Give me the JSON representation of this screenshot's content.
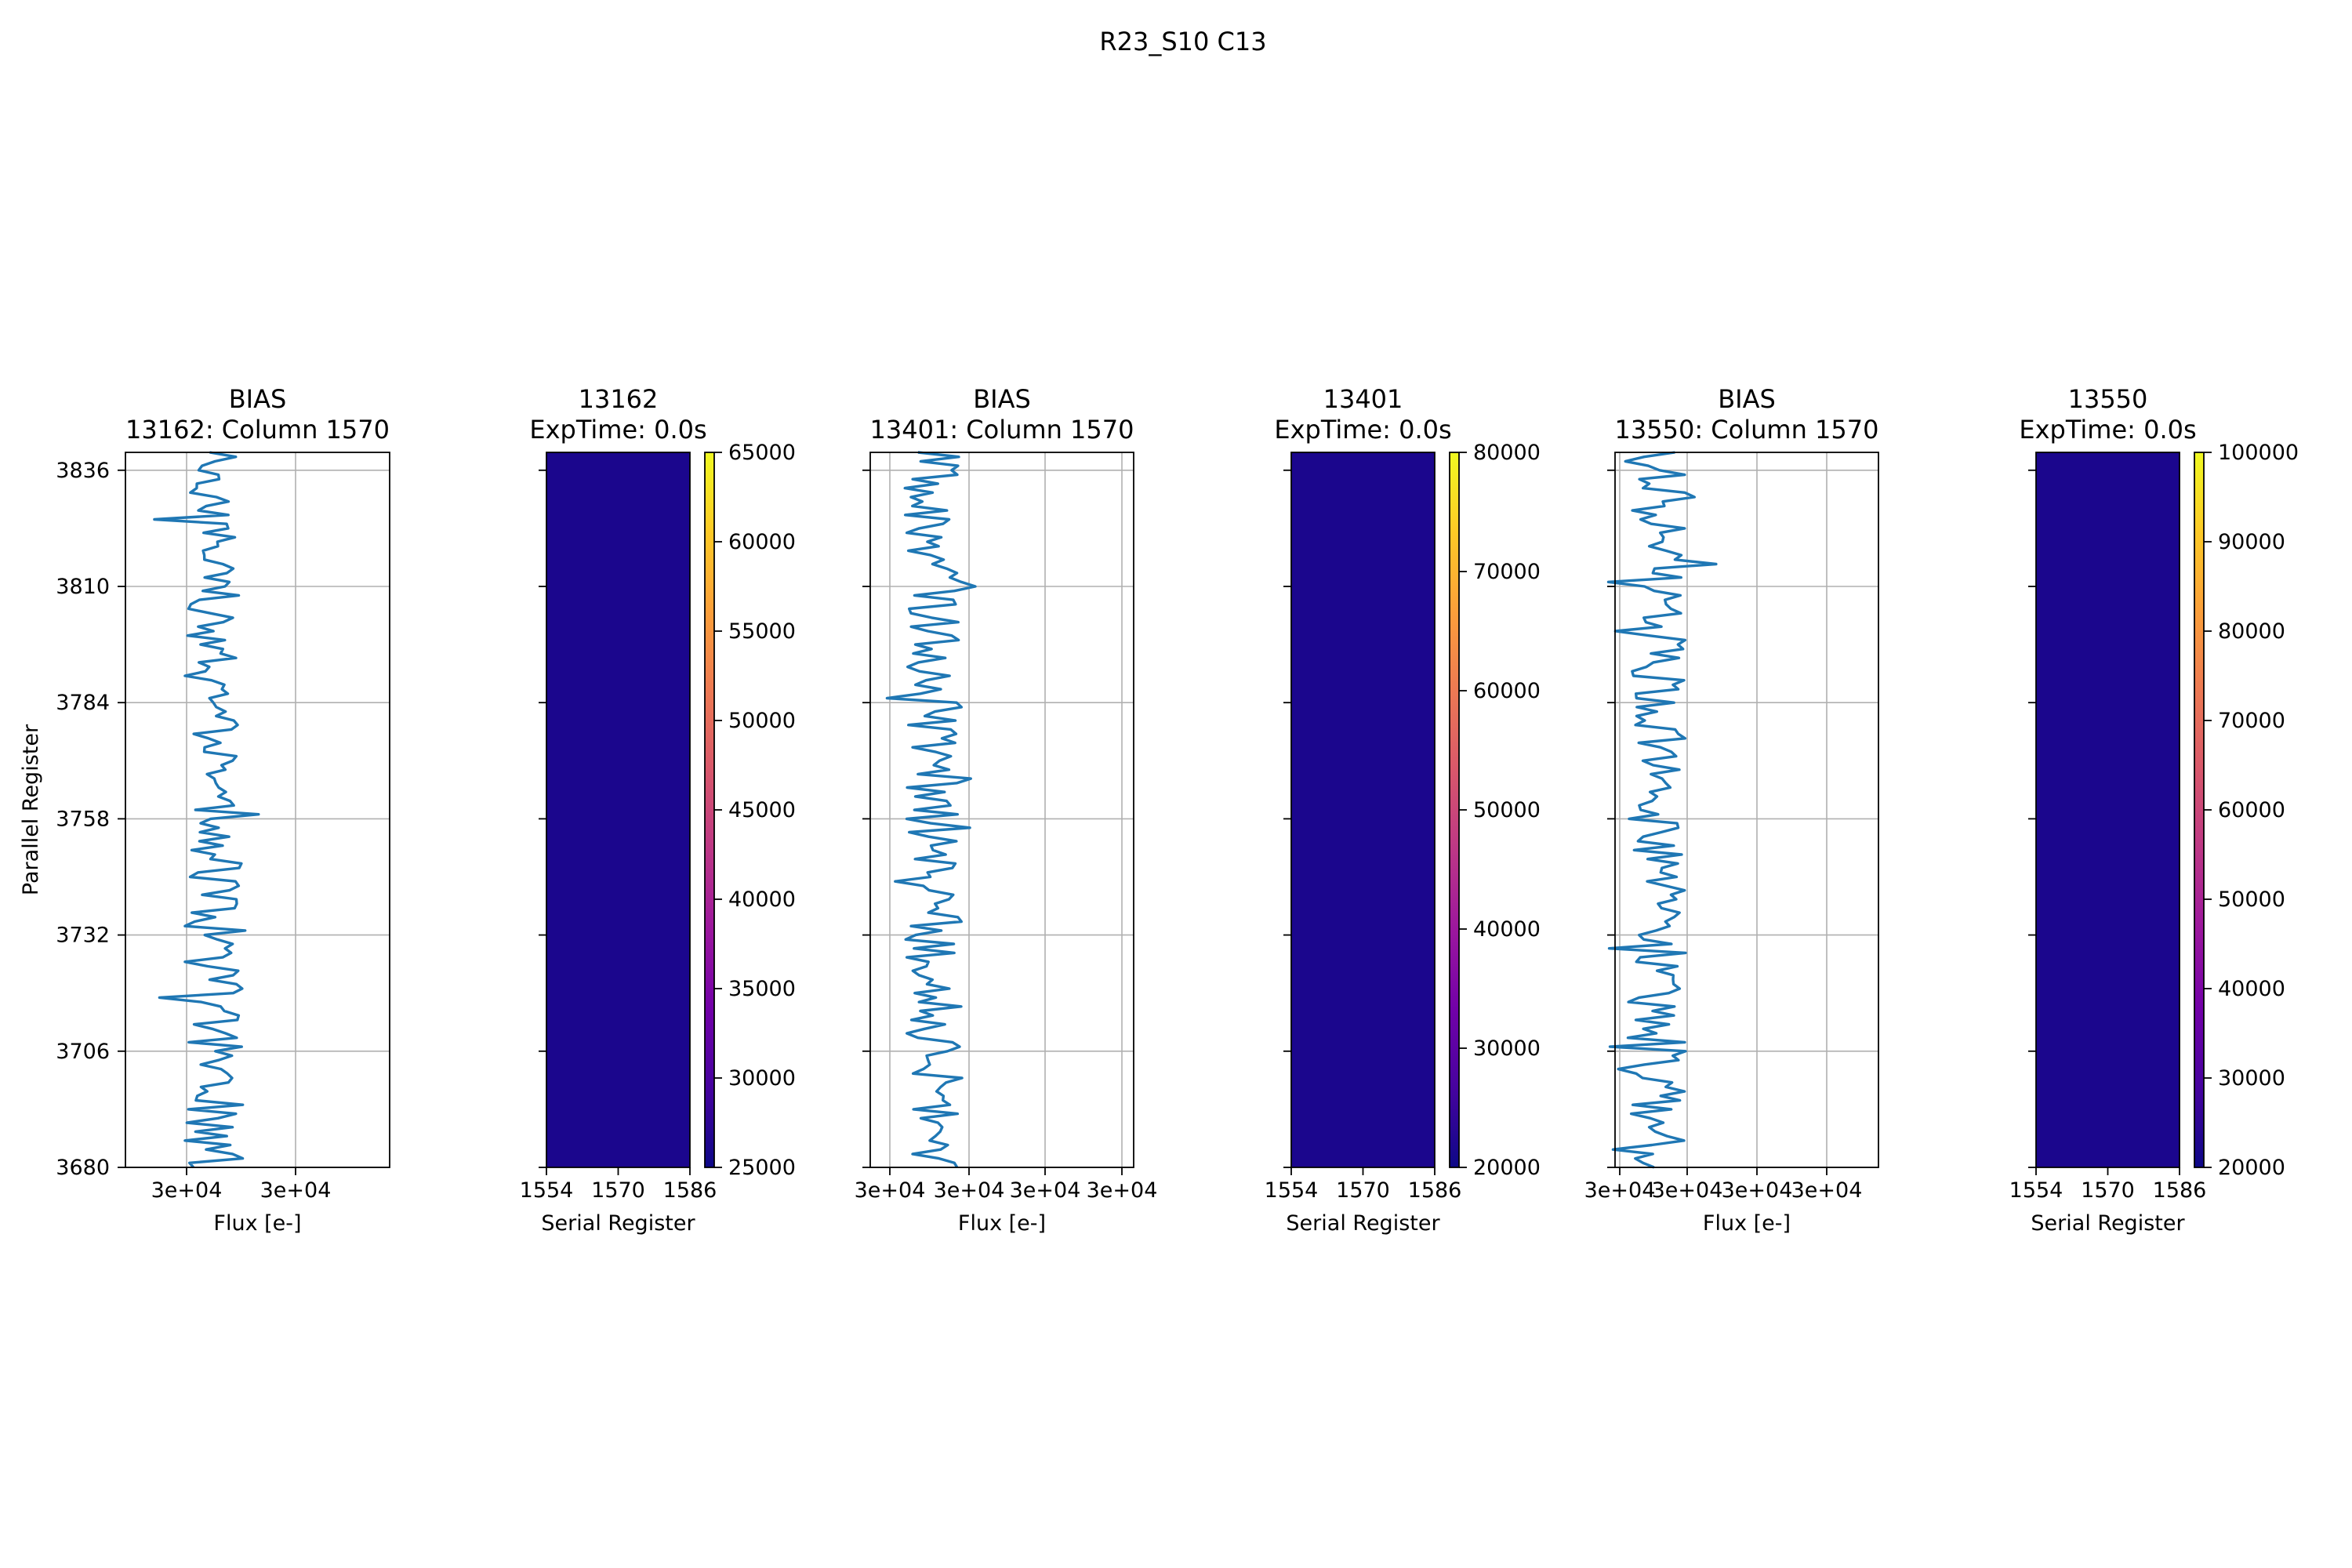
{
  "figure": {
    "suptitle": "R23_S10 C13"
  },
  "colors": {
    "line": "#1f77b4",
    "grid": "#b0b0b0",
    "image_fill": "#1b068d",
    "colormap": [
      "#0d0887",
      "#46039f",
      "#7201a8",
      "#9c179e",
      "#bd3786",
      "#d8576b",
      "#ed7953",
      "#fb9f3a",
      "#fdca26",
      "#f0f921"
    ]
  },
  "chart_data": [
    {
      "type": "line",
      "title_line1": "BIAS",
      "title_line2": "13162: Column 1570",
      "xlabel": "Flux [e-]",
      "ylabel": "Parallel Register",
      "xticks": [
        "3e+04",
        "3e+04"
      ],
      "yticks": [
        3680,
        3706,
        3732,
        3758,
        3784,
        3810,
        3836
      ],
      "ylim": [
        3680,
        3840
      ],
      "grid": true,
      "seed": 13162,
      "y": [
        3680,
        3840
      ]
    },
    {
      "type": "heatmap",
      "title_line1": "13162",
      "title_line2": "ExpTime: 0.0s",
      "xlabel": "Serial Register",
      "xticks": [
        1554,
        1570,
        1586
      ],
      "xlim": [
        1554,
        1586
      ],
      "ylim": [
        3680,
        3840
      ],
      "colorbar": {
        "min": 25000,
        "max": 65000,
        "ticks": [
          25000,
          30000,
          35000,
          40000,
          45000,
          50000,
          55000,
          60000,
          65000
        ]
      }
    },
    {
      "type": "line",
      "title_line1": "BIAS",
      "title_line2": "13401: Column 1570",
      "xlabel": "Flux [e-]",
      "xticks": [
        "3e+04",
        "3e+04",
        "3e+04",
        "3e+04"
      ],
      "ylim": [
        3680,
        3840
      ],
      "grid": true,
      "seed": 13401,
      "y": [
        3680,
        3840
      ]
    },
    {
      "type": "heatmap",
      "title_line1": "13401",
      "title_line2": "ExpTime: 0.0s",
      "xlabel": "Serial Register",
      "xticks": [
        1554,
        1570,
        1586
      ],
      "xlim": [
        1554,
        1586
      ],
      "ylim": [
        3680,
        3840
      ],
      "colorbar": {
        "min": 20000,
        "max": 80000,
        "ticks": [
          20000,
          30000,
          40000,
          50000,
          60000,
          70000,
          80000
        ]
      }
    },
    {
      "type": "line",
      "title_line1": "BIAS",
      "title_line2": "13550: Column 1570",
      "xlabel": "Flux [e-]",
      "xticks": [
        "3e+04",
        "3e+04",
        "3e+04",
        "3e+04"
      ],
      "ylim": [
        3680,
        3840
      ],
      "grid": true,
      "seed": 13550,
      "y": [
        3680,
        3840
      ]
    },
    {
      "type": "heatmap",
      "title_line1": "13550",
      "title_line2": "ExpTime: 0.0s",
      "xlabel": "Serial Register",
      "xticks": [
        1554,
        1570,
        1586
      ],
      "xlim": [
        1554,
        1586
      ],
      "ylim": [
        3680,
        3840
      ],
      "colorbar": {
        "min": 20000,
        "max": 100000,
        "ticks": [
          20000,
          30000,
          40000,
          50000,
          60000,
          70000,
          80000,
          90000,
          100000
        ]
      }
    }
  ]
}
